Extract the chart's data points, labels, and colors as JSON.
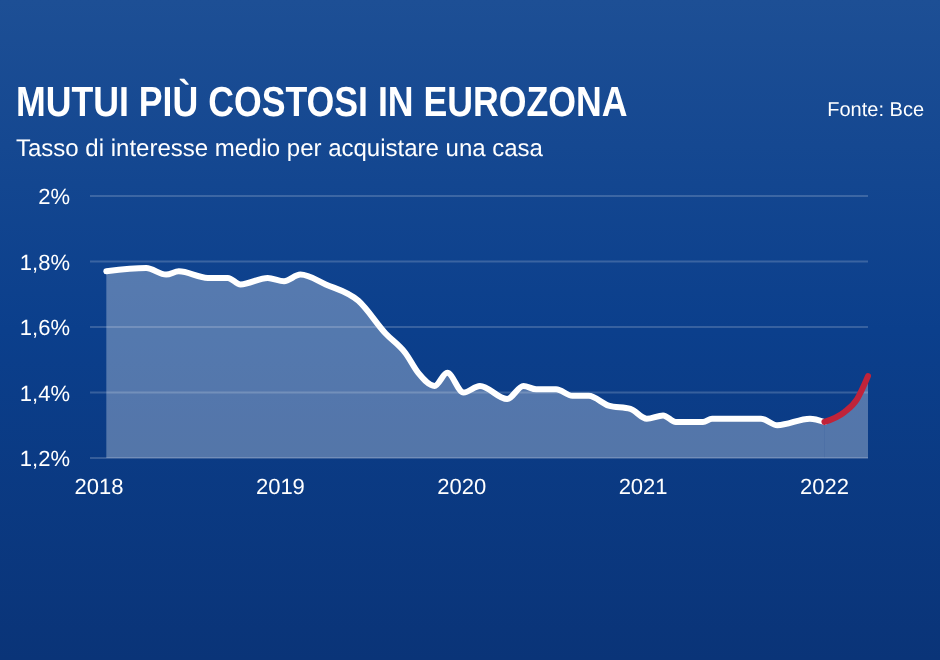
{
  "chart_data": {
    "type": "area",
    "title": "MUTUI PIÙ COSTOSI IN EUROZONA",
    "subtitle": "Tasso di interesse medio per acquistare una casa",
    "annotations": [
      "Fonte: Bce"
    ],
    "series": [
      {
        "color": "#ffffff",
        "x": [
          2018.04,
          2018.26,
          2018.37,
          2018.44,
          2018.6,
          2018.71,
          2018.78,
          2018.93,
          2019.02,
          2019.11,
          2019.25,
          2019.43,
          2019.58,
          2019.69,
          2019.76,
          2019.85,
          2019.92,
          2020.01,
          2020.1,
          2020.25,
          2020.34,
          2020.41,
          2020.52,
          2020.61,
          2020.7,
          2020.81,
          2020.93,
          2021.02,
          2021.11,
          2021.18,
          2021.33,
          2021.38,
          2021.65,
          2021.74,
          2021.92,
          2022.0
        ],
        "values": [
          1.77,
          1.78,
          1.76,
          1.77,
          1.75,
          1.75,
          1.73,
          1.75,
          1.74,
          1.76,
          1.73,
          1.68,
          1.58,
          1.52,
          1.46,
          1.42,
          1.46,
          1.4,
          1.42,
          1.38,
          1.42,
          1.41,
          1.41,
          1.39,
          1.39,
          1.36,
          1.35,
          1.32,
          1.33,
          1.31,
          1.31,
          1.32,
          1.32,
          1.3,
          1.32,
          1.31
        ]
      },
      {
        "color": "#c0233a",
        "x": [
          2022.0,
          2022.11,
          2022.18,
          2022.24
        ],
        "values": [
          1.31,
          1.34,
          1.38,
          1.45
        ]
      }
    ],
    "xlim": [
      2017.95,
      2022.24
    ],
    "xticks": [
      2018,
      2019,
      2020,
      2021,
      2022
    ],
    "ylim": [
      1.2,
      2.0
    ],
    "yticks": [
      {
        "value": 1.2,
        "label": "1,2%"
      },
      {
        "value": 1.4,
        "label": "1,4%"
      },
      {
        "value": 1.6,
        "label": "1,6%"
      },
      {
        "value": 1.8,
        "label": "1,8%"
      },
      {
        "value": 2.0,
        "label": "2%"
      }
    ],
    "grid": "y"
  }
}
